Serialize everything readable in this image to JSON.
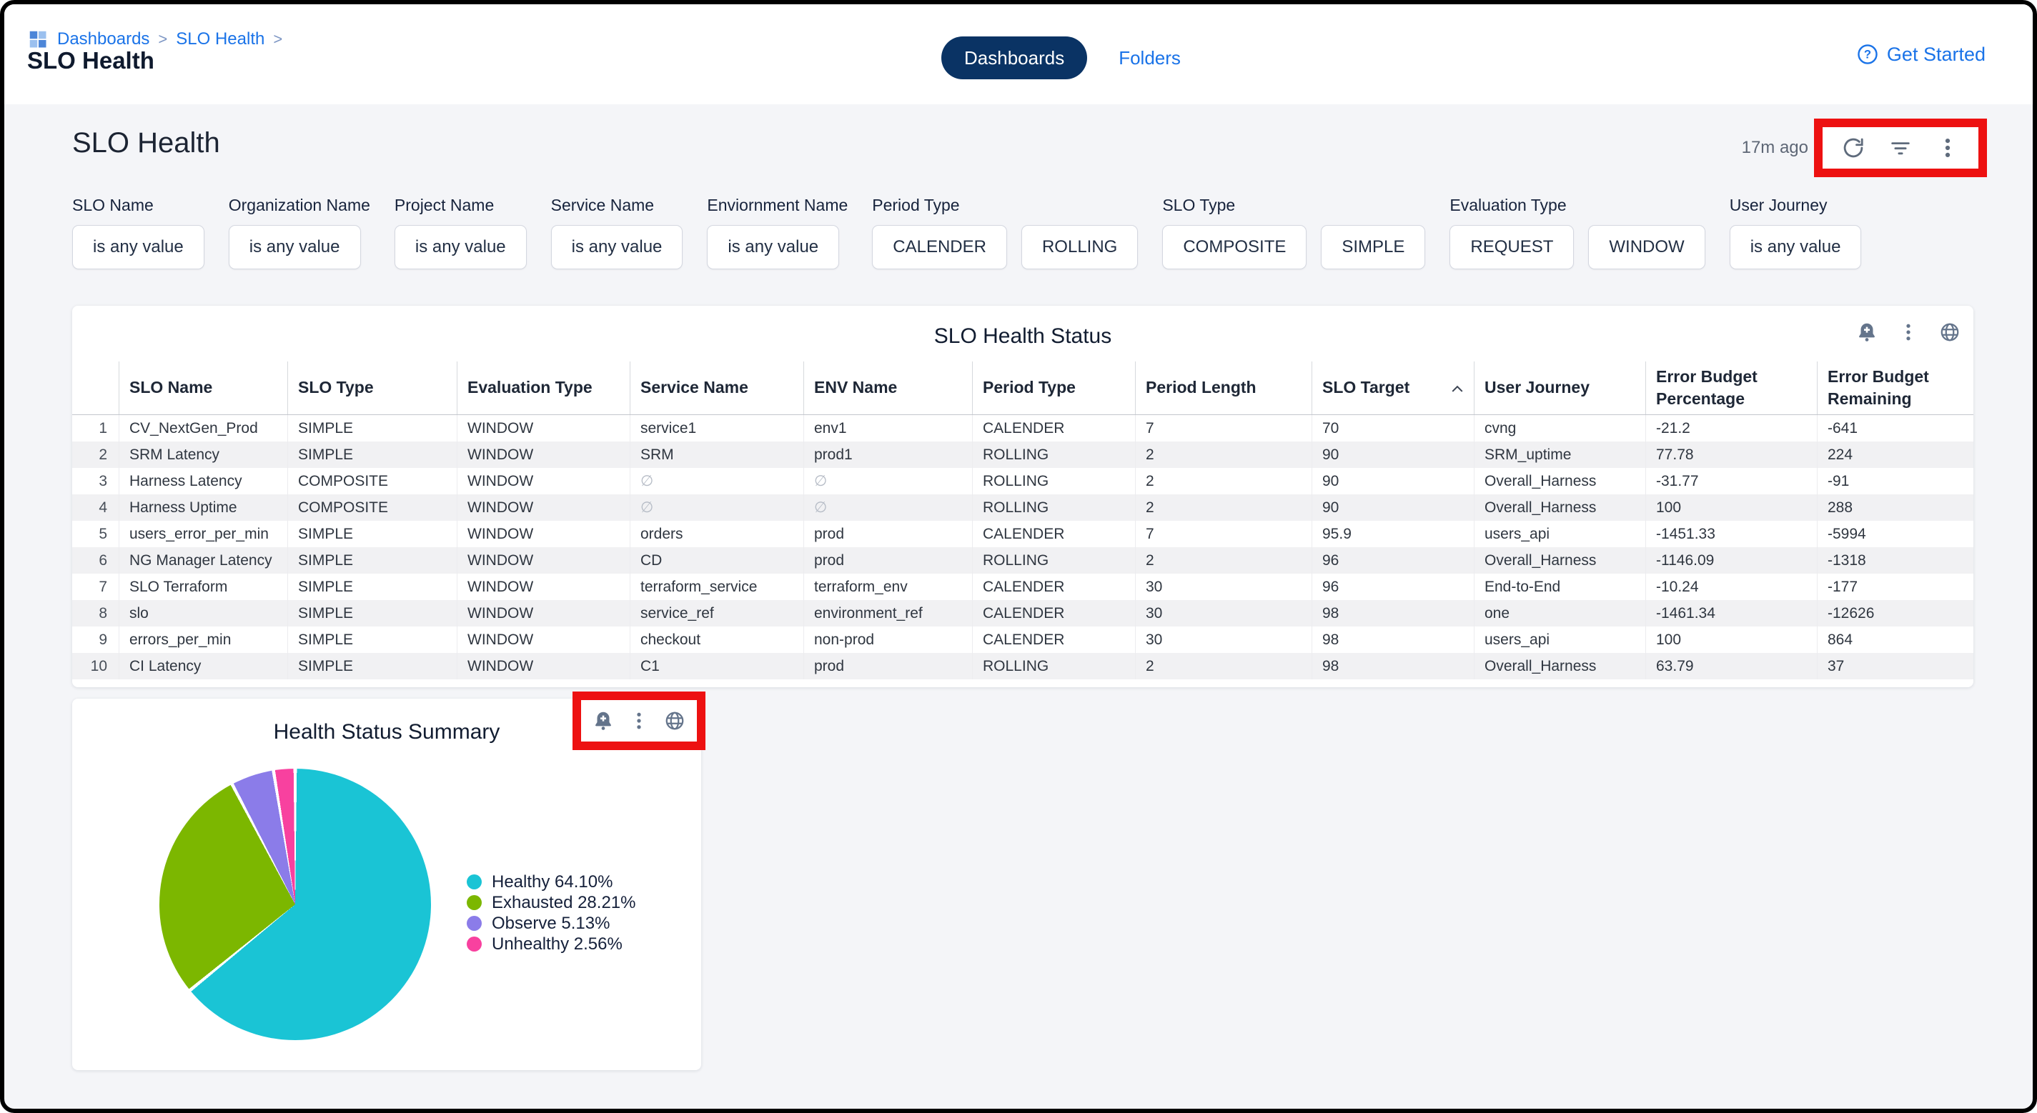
{
  "topbar": {
    "breadcrumb": {
      "items": [
        "Dashboards",
        "SLO Health"
      ],
      "separator": ">"
    },
    "page_title": "SLO Health",
    "tabs": [
      {
        "label": "Dashboards",
        "active": true
      },
      {
        "label": "Folders",
        "active": false
      }
    ],
    "get_started": "Get Started"
  },
  "dashboard": {
    "title": "SLO Health",
    "last_refresh": "17m ago",
    "toolbar_icons": [
      "refresh",
      "filter",
      "more"
    ]
  },
  "filters": [
    {
      "label": "SLO Name",
      "chips": [
        "is any value"
      ]
    },
    {
      "label": "Organization Name",
      "chips": [
        "is any value"
      ]
    },
    {
      "label": "Project Name",
      "chips": [
        "is any value"
      ]
    },
    {
      "label": "Service Name",
      "chips": [
        "is any value"
      ]
    },
    {
      "label": "Enviornment Name",
      "chips": [
        "is any value"
      ]
    },
    {
      "label": "Period Type",
      "chips": [
        "CALENDER",
        "ROLLING"
      ]
    },
    {
      "label": "SLO Type",
      "chips": [
        "COMPOSITE",
        "SIMPLE"
      ]
    },
    {
      "label": "Evaluation Type",
      "chips": [
        "REQUEST",
        "WINDOW"
      ]
    },
    {
      "label": "User Journey",
      "chips": [
        "is any value"
      ]
    }
  ],
  "table_card": {
    "title": "SLO Health Status",
    "icons": [
      "alert-bell",
      "more",
      "explore-globe"
    ],
    "sort_column": "SLO Target",
    "sort_direction": "asc",
    "columns": [
      "",
      "SLO Name",
      "SLO Type",
      "Evaluation Type",
      "Service Name",
      "ENV Name",
      "Period Type",
      "Period Length",
      "SLO Target",
      "User Journey",
      "Error Budget Percentage",
      "Error Budget Remaining"
    ],
    "rows": [
      [
        "1",
        "CV_NextGen_Prod",
        "SIMPLE",
        "WINDOW",
        "service1",
        "env1",
        "CALENDER",
        "7",
        "70",
        "cvng",
        "-21.2",
        "-641"
      ],
      [
        "2",
        "SRM Latency",
        "SIMPLE",
        "WINDOW",
        "SRM",
        "prod1",
        "ROLLING",
        "2",
        "90",
        "SRM_uptime",
        "77.78",
        "224"
      ],
      [
        "3",
        "Harness Latency",
        "COMPOSITE",
        "WINDOW",
        "∅",
        "∅",
        "ROLLING",
        "2",
        "90",
        "Overall_Harness",
        "-31.77",
        "-91"
      ],
      [
        "4",
        "Harness Uptime",
        "COMPOSITE",
        "WINDOW",
        "∅",
        "∅",
        "ROLLING",
        "2",
        "90",
        "Overall_Harness",
        "100",
        "288"
      ],
      [
        "5",
        "users_error_per_min",
        "SIMPLE",
        "WINDOW",
        "orders",
        "prod",
        "CALENDER",
        "7",
        "95.9",
        "users_api",
        "-1451.33",
        "-5994"
      ],
      [
        "6",
        "NG Manager Latency",
        "SIMPLE",
        "WINDOW",
        "CD",
        "prod",
        "ROLLING",
        "2",
        "96",
        "Overall_Harness",
        "-1146.09",
        "-1318"
      ],
      [
        "7",
        "SLO Terraform",
        "SIMPLE",
        "WINDOW",
        "terraform_service",
        "terraform_env",
        "CALENDER",
        "30",
        "96",
        "End-to-End",
        "-10.24",
        "-177"
      ],
      [
        "8",
        "slo",
        "SIMPLE",
        "WINDOW",
        "service_ref",
        "environment_ref",
        "CALENDER",
        "30",
        "98",
        "one",
        "-1461.34",
        "-12626"
      ],
      [
        "9",
        "errors_per_min",
        "SIMPLE",
        "WINDOW",
        "checkout",
        "non-prod",
        "CALENDER",
        "30",
        "98",
        "users_api",
        "100",
        "864"
      ],
      [
        "10",
        "CI Latency",
        "SIMPLE",
        "WINDOW",
        "C1",
        "prod",
        "ROLLING",
        "2",
        "98",
        "Overall_Harness",
        "63.79",
        "37"
      ]
    ]
  },
  "pie_card": {
    "title": "Health Status Summary",
    "icons": [
      "alert-bell",
      "more",
      "explore-globe"
    ]
  },
  "chart_data": {
    "type": "pie",
    "title": "Health Status Summary",
    "labels": [
      "Healthy",
      "Exhausted",
      "Observe",
      "Unhealthy"
    ],
    "values": [
      64.1,
      28.21,
      5.13,
      2.56
    ],
    "colors": [
      "#1ac4d5",
      "#7cb700",
      "#8b7ce9",
      "#f8419f"
    ],
    "legend_position": "right",
    "start_angle_deg": 0,
    "direction": "clockwise"
  },
  "annotations": {
    "highlight_color": "#ed1111",
    "boxes": [
      "dashboard-toolbar-icons",
      "summary-tile-icons"
    ]
  },
  "theme": {
    "link_blue": "#1a73e8",
    "pill_navy": "#0a3364",
    "annotation_red": "#ed1111",
    "icon_gray": "#64748b",
    "text_dark": "#1b2536",
    "zebra_row": "#f1f1f3"
  }
}
